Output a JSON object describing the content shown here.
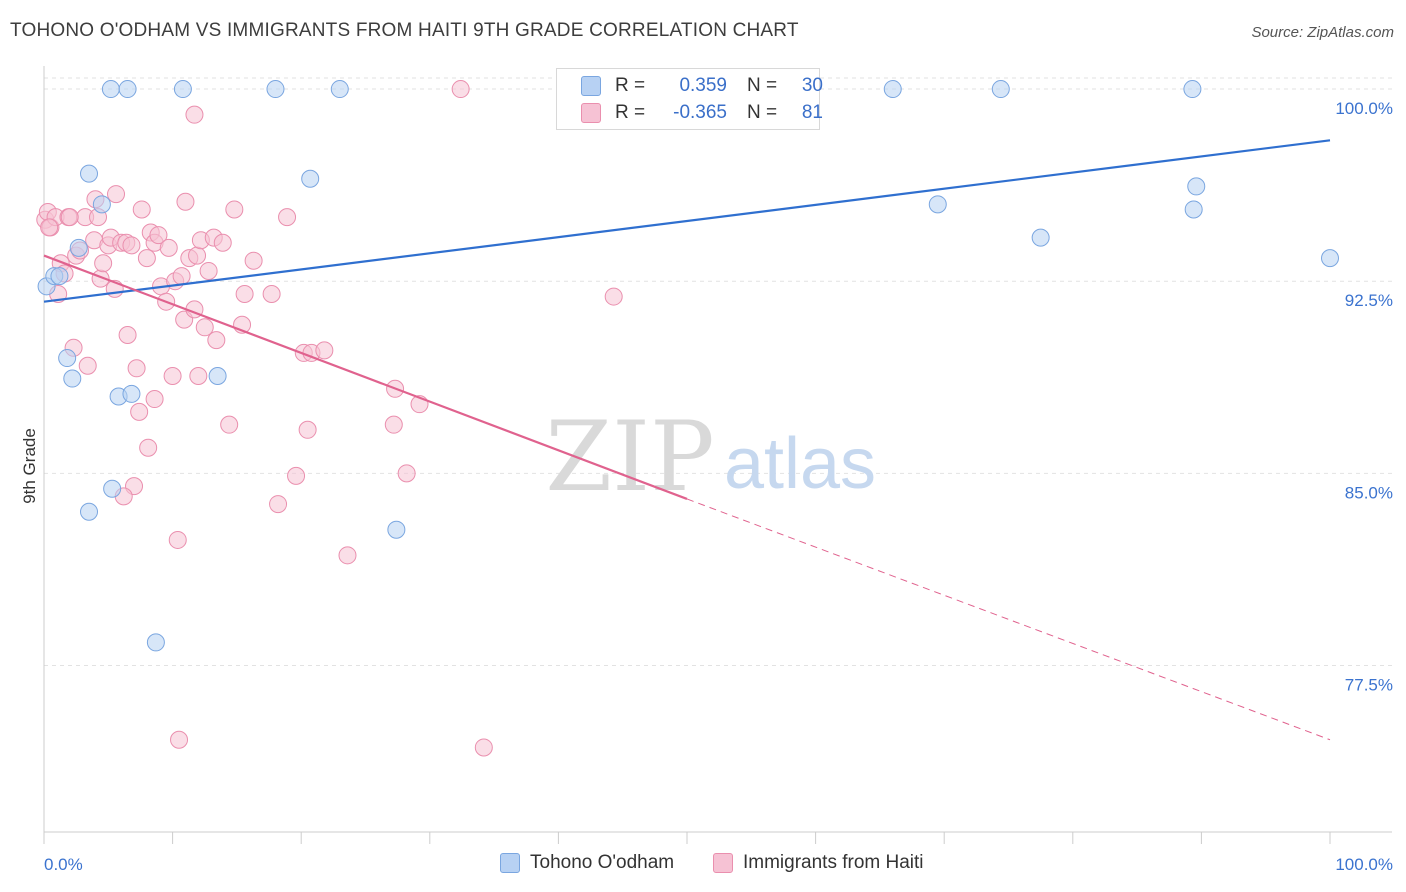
{
  "title": "TOHONO O'ODHAM VS IMMIGRANTS FROM HAITI 9TH GRADE CORRELATION CHART",
  "source": "Source: ZipAtlas.com",
  "watermark": {
    "zip": "ZIP",
    "atlas": "atlas"
  },
  "colors": {
    "blue_fill": "#b7d1f3",
    "blue_stroke": "#7aa6e0",
    "blue_line": "#2f6fcf",
    "pink_fill": "#f6c2d4",
    "pink_stroke": "#ea8fae",
    "pink_line": "#e0628e",
    "axis_text": "#3b73cf"
  },
  "stats": {
    "blue": {
      "r_label": "R =",
      "r_value": "0.359",
      "n_label": "N =",
      "n_value": "30"
    },
    "pink": {
      "r_label": "R =",
      "r_value": "-0.365",
      "n_label": "N =",
      "n_value": "81"
    }
  },
  "chart_data": {
    "type": "scatter",
    "title": "TOHONO O'ODHAM VS IMMIGRANTS FROM HAITI 9TH GRADE CORRELATION CHART",
    "xlabel": "",
    "ylabel": "9th Grade",
    "xlim": [
      0,
      100
    ],
    "ylim": [
      71.0,
      100.9
    ],
    "x_tick_labels": [
      "0.0%",
      "100.0%"
    ],
    "y_ticks": [
      77.5,
      85.0,
      92.5,
      100.0
    ],
    "y_tick_labels": [
      "77.5%",
      "85.0%",
      "92.5%",
      "100.0%"
    ],
    "grid": true,
    "legend": "bottom",
    "series": [
      {
        "name": "Tohono O'odham",
        "color": "#b7d1f3",
        "points": [
          [
            0.2,
            92.3
          ],
          [
            0.8,
            92.7
          ],
          [
            1.2,
            92.7
          ],
          [
            1.8,
            89.5
          ],
          [
            2.2,
            88.7
          ],
          [
            2.7,
            93.8
          ],
          [
            3.5,
            96.7
          ],
          [
            4.5,
            95.5
          ],
          [
            5.2,
            100.0
          ],
          [
            6.5,
            100.0
          ],
          [
            5.8,
            88.0
          ],
          [
            6.8,
            88.1
          ],
          [
            5.3,
            84.4
          ],
          [
            3.5,
            83.5
          ],
          [
            8.7,
            78.4
          ],
          [
            10.8,
            100.0
          ],
          [
            13.5,
            88.8
          ],
          [
            18.0,
            100.0
          ],
          [
            20.7,
            96.5
          ],
          [
            23.0,
            100.0
          ],
          [
            27.4,
            82.8
          ],
          [
            47.3,
            100.0
          ],
          [
            66.0,
            100.0
          ],
          [
            69.5,
            95.5
          ],
          [
            74.4,
            100.0
          ],
          [
            77.5,
            94.2
          ],
          [
            89.3,
            100.0
          ],
          [
            89.4,
            95.3
          ],
          [
            89.6,
            96.2
          ],
          [
            100.0,
            93.4
          ]
        ]
      },
      {
        "name": "Immigrants from Haiti",
        "color": "#f6c2d4",
        "points": [
          [
            0.1,
            94.9
          ],
          [
            0.3,
            95.2
          ],
          [
            0.5,
            94.6
          ],
          [
            0.9,
            95.0
          ],
          [
            1.1,
            92.0
          ],
          [
            1.3,
            93.2
          ],
          [
            1.6,
            92.8
          ],
          [
            1.9,
            95.0
          ],
          [
            2.3,
            89.9
          ],
          [
            2.5,
            93.5
          ],
          [
            2.8,
            93.7
          ],
          [
            3.2,
            95.0
          ],
          [
            3.4,
            89.2
          ],
          [
            3.9,
            94.1
          ],
          [
            4.2,
            95.0
          ],
          [
            4.4,
            92.6
          ],
          [
            4.6,
            93.2
          ],
          [
            5.0,
            93.9
          ],
          [
            5.2,
            94.2
          ],
          [
            5.5,
            92.2
          ],
          [
            5.6,
            95.9
          ],
          [
            6.0,
            94.0
          ],
          [
            6.4,
            94.0
          ],
          [
            6.5,
            90.4
          ],
          [
            6.8,
            93.9
          ],
          [
            7.0,
            84.5
          ],
          [
            7.2,
            89.1
          ],
          [
            7.4,
            87.4
          ],
          [
            7.6,
            95.3
          ],
          [
            8.0,
            93.4
          ],
          [
            8.1,
            86.0
          ],
          [
            8.3,
            94.4
          ],
          [
            8.6,
            94.0
          ],
          [
            8.9,
            94.3
          ],
          [
            9.1,
            92.3
          ],
          [
            9.5,
            91.7
          ],
          [
            9.7,
            93.8
          ],
          [
            10.0,
            88.8
          ],
          [
            10.2,
            92.5
          ],
          [
            10.4,
            82.4
          ],
          [
            10.7,
            92.7
          ],
          [
            10.9,
            91.0
          ],
          [
            11.0,
            95.6
          ],
          [
            11.3,
            93.4
          ],
          [
            11.7,
            91.4
          ],
          [
            11.9,
            93.5
          ],
          [
            12.2,
            94.1
          ],
          [
            12.5,
            90.7
          ],
          [
            12.8,
            92.9
          ],
          [
            13.2,
            94.2
          ],
          [
            13.4,
            90.2
          ],
          [
            13.9,
            94.0
          ],
          [
            14.4,
            86.9
          ],
          [
            14.8,
            95.3
          ],
          [
            15.4,
            90.8
          ],
          [
            15.6,
            92.0
          ],
          [
            16.3,
            93.3
          ],
          [
            17.7,
            92.0
          ],
          [
            18.2,
            83.8
          ],
          [
            18.9,
            95.0
          ],
          [
            19.6,
            84.9
          ],
          [
            20.2,
            89.7
          ],
          [
            20.5,
            86.7
          ],
          [
            20.8,
            89.7
          ],
          [
            21.8,
            89.8
          ],
          [
            23.6,
            81.8
          ],
          [
            27.2,
            86.9
          ],
          [
            27.3,
            88.3
          ],
          [
            28.2,
            85.0
          ],
          [
            29.2,
            87.7
          ],
          [
            10.5,
            74.6
          ],
          [
            11.7,
            99.0
          ],
          [
            32.4,
            100.0
          ],
          [
            34.2,
            74.3
          ],
          [
            44.3,
            91.9
          ],
          [
            8.6,
            87.9
          ],
          [
            4.0,
            95.7
          ],
          [
            2.0,
            95.0
          ],
          [
            12.0,
            88.8
          ],
          [
            6.2,
            84.1
          ],
          [
            0.4,
            94.6
          ]
        ]
      }
    ],
    "trend_lines": [
      {
        "series": "Tohono O'odham",
        "x": [
          0,
          100
        ],
        "y": [
          91.7,
          98.0
        ],
        "style": "solid"
      },
      {
        "series": "Immigrants from Haiti",
        "x": [
          0,
          50
        ],
        "y": [
          93.5,
          84.0
        ],
        "style": "solid"
      },
      {
        "series": "Immigrants from Haiti",
        "x": [
          50,
          100
        ],
        "y": [
          84.0,
          74.6
        ],
        "style": "dashed"
      }
    ]
  },
  "legend_bottom": [
    {
      "label": "Tohono O'odham",
      "color_key": "blue"
    },
    {
      "label": "Immigrants from Haiti",
      "color_key": "pink"
    }
  ]
}
